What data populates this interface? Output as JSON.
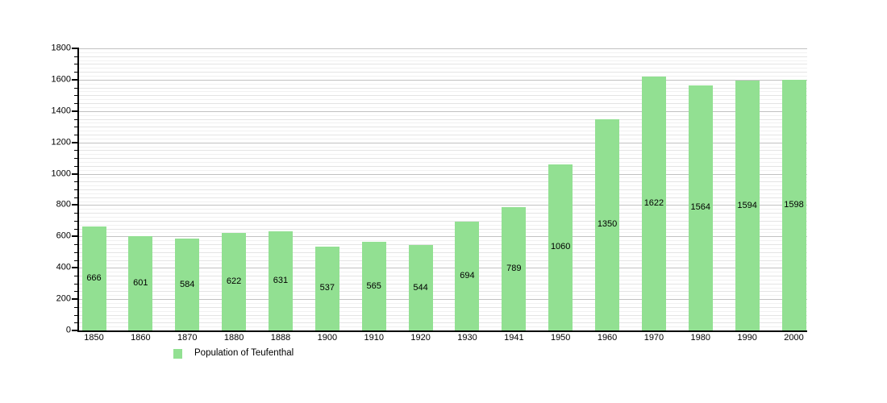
{
  "chart_data": {
    "type": "bar",
    "title": "",
    "xlabel": "",
    "ylabel": "",
    "categories": [
      "1850",
      "1860",
      "1870",
      "1880",
      "1888",
      "1900",
      "1910",
      "1920",
      "1930",
      "1941",
      "1950",
      "1960",
      "1970",
      "1980",
      "1990",
      "2000"
    ],
    "values": [
      666,
      601,
      584,
      622,
      631,
      537,
      565,
      544,
      694,
      789,
      1060,
      1350,
      1622,
      1564,
      1594,
      1598
    ],
    "series_name": "Population of Teufenthal",
    "ylim": [
      0,
      1800
    ],
    "ytick_labels": [
      "0",
      "200",
      "400",
      "600",
      "800",
      "1000",
      "1200",
      "1400",
      "1600",
      "1800"
    ],
    "ytick_major_step": 200,
    "ytick_minor_step": 50,
    "grid": true,
    "gridline_minor_step": 25,
    "legend_position": "bottom-left",
    "bar_color": "#92e092",
    "bar_label_position": "center"
  },
  "legend": {
    "label": "Population of Teufenthal",
    "swatch_color": "#92e092"
  }
}
